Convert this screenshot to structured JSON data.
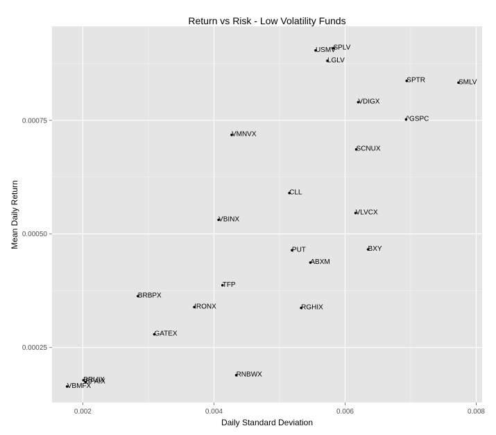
{
  "chart_data": {
    "type": "scatter",
    "title": "Return vs Risk - Low Volatility Funds",
    "xlabel": "Daily Standard Deviation",
    "ylabel": "Mean Daily Return",
    "xlim": [
      0.00153,
      0.00809
    ],
    "ylim": [
      0.000129,
      0.000957
    ],
    "x_ticks": [
      0.002,
      0.004,
      0.006,
      0.008
    ],
    "x_tick_labels": [
      "0.002",
      "0.004",
      "0.006",
      "0.008"
    ],
    "y_ticks": [
      0.00025,
      0.0005,
      0.00075
    ],
    "y_tick_labels": [
      "0.00025",
      "0.00050",
      "0.00075"
    ],
    "grid": true,
    "points": [
      {
        "label": "SPLV",
        "x": 0.00582,
        "y": 0.000909
      },
      {
        "label": "USMV",
        "x": 0.00555,
        "y": 0.000904
      },
      {
        "label": "LGLV",
        "x": 0.00573,
        "y": 0.000881
      },
      {
        "label": "SPTR",
        "x": 0.00694,
        "y": 0.000837
      },
      {
        "label": "SMLV",
        "x": 0.00773,
        "y": 0.000833
      },
      {
        "label": "VDIGX",
        "x": 0.0062,
        "y": 0.00079
      },
      {
        "label": "^GSPC",
        "x": 0.00693,
        "y": 0.000752
      },
      {
        "label": "VMNVX",
        "x": 0.00427,
        "y": 0.000718
      },
      {
        "label": "SCNUX",
        "x": 0.00617,
        "y": 0.000686
      },
      {
        "label": "CLL",
        "x": 0.00515,
        "y": 0.00059
      },
      {
        "label": "VLVCX",
        "x": 0.00616,
        "y": 0.000546
      },
      {
        "label": "VBINX",
        "x": 0.00407,
        "y": 0.000531
      },
      {
        "label": "PUT",
        "x": 0.00519,
        "y": 0.000464
      },
      {
        "label": "BXY",
        "x": 0.00635,
        "y": 0.000466
      },
      {
        "label": "ABXM",
        "x": 0.00547,
        "y": 0.000437
      },
      {
        "label": "TFP",
        "x": 0.00413,
        "y": 0.000387
      },
      {
        "label": "BRBPX",
        "x": 0.00284,
        "y": 0.000363
      },
      {
        "label": "IRONX",
        "x": 0.0037,
        "y": 0.000339
      },
      {
        "label": "RGHIX",
        "x": 0.00533,
        "y": 0.000337
      },
      {
        "label": "GATEX",
        "x": 0.00309,
        "y": 0.000279
      },
      {
        "label": "RNBWX",
        "x": 0.00434,
        "y": 0.000189
      },
      {
        "label": "BRUIX",
        "x": 0.00201,
        "y": 0.000178
      },
      {
        "label": "BPAIX",
        "x": 0.00204,
        "y": 0.000174
      },
      {
        "label": "VBMFX",
        "x": 0.00176,
        "y": 0.000164
      }
    ]
  }
}
